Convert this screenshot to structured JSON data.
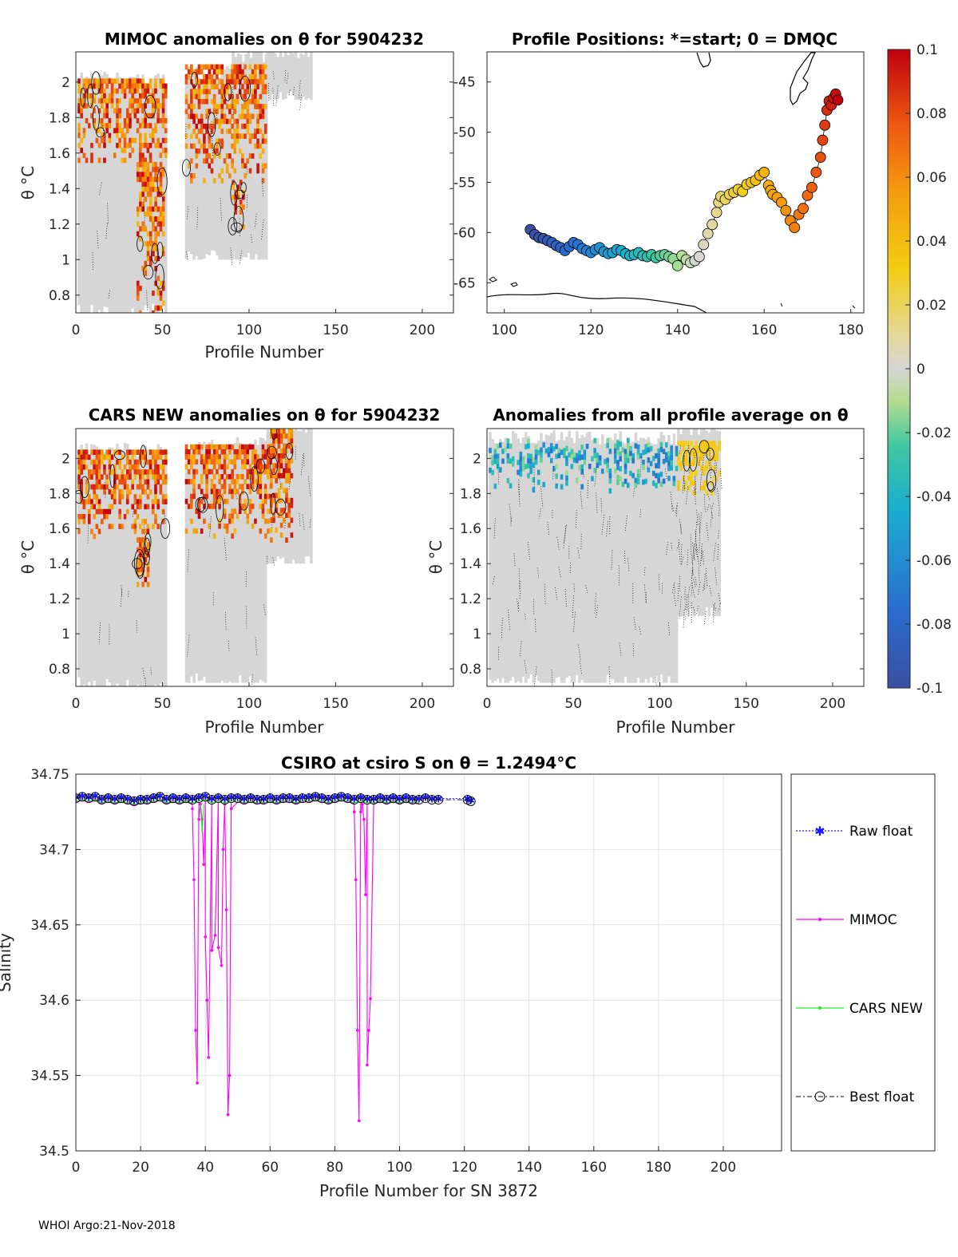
{
  "footer": "WHOI Argo:21-Nov-2018",
  "colorbar": {
    "ticks": [
      "0.1",
      "0.08",
      "0.06",
      "0.04",
      "0.02",
      "0",
      "-0.02",
      "-0.04",
      "-0.06",
      "-0.08",
      "-0.1"
    ],
    "range": [
      -0.1,
      0.1
    ]
  },
  "chart_data": [
    {
      "id": "mimoc",
      "type": "heatmap",
      "title": "MIMOC anomalies on θ  for 5904232",
      "xlabel": "Profile Number",
      "ylabel": "θ °C",
      "xlim": [
        0,
        218
      ],
      "ylim": [
        0.7,
        2.17
      ],
      "xticks": [
        "0",
        "50",
        "100",
        "150",
        "200"
      ],
      "yticks": [
        "0.8",
        "1",
        "1.2",
        "1.4",
        "1.6",
        "1.8",
        "2"
      ],
      "blocks": [
        {
          "x0": 1,
          "x1": 52,
          "ybot": 0.7,
          "ytop": 2.02
        },
        {
          "x0": 63,
          "x1": 90,
          "ybot": 1.0,
          "ytop": 2.05
        },
        {
          "x0": 90,
          "x1": 110,
          "ybot": 1.0,
          "ytop": 2.15
        },
        {
          "x0": 110,
          "x1": 136,
          "ybot": 1.9,
          "ytop": 2.17
        }
      ],
      "warm_bands": [
        {
          "x0": 1,
          "x1": 52,
          "ylo": 1.55,
          "yhi": 2.02
        },
        {
          "x0": 35,
          "x1": 50,
          "ylo": 0.7,
          "yhi": 1.55
        },
        {
          "x0": 63,
          "x1": 110,
          "ylo": 1.45,
          "yhi": 2.1
        },
        {
          "x0": 90,
          "x1": 97,
          "ylo": 1.15,
          "yhi": 1.45
        }
      ]
    },
    {
      "id": "positions",
      "type": "scatter",
      "title": "Profile Positions: *=start; 0 = DMQC",
      "xlim": [
        96,
        183
      ],
      "ylim": [
        -68,
        -42
      ],
      "xticks": [
        "100",
        "120",
        "140",
        "160",
        "180"
      ],
      "yticks": [
        "-45",
        "-50",
        "-55",
        "-60",
        "-65"
      ],
      "start": [
        110,
        -59.3
      ],
      "lon": [
        106,
        107,
        108,
        109,
        110,
        111,
        112,
        113,
        114,
        115,
        116,
        117,
        118,
        119,
        120,
        121,
        122,
        123,
        124,
        125,
        126,
        127,
        128,
        129,
        130,
        131,
        132,
        133,
        134,
        135,
        136,
        137,
        138,
        139,
        140,
        141,
        142,
        143,
        144,
        145,
        146,
        147,
        148,
        149,
        149.5,
        150,
        151,
        152,
        153,
        154,
        155,
        156,
        157,
        158,
        159,
        160,
        161,
        161.5,
        162,
        163,
        164,
        165,
        166,
        167,
        168,
        169,
        170,
        171,
        172,
        173,
        173.5,
        174,
        174.5,
        175,
        175.5,
        176,
        176.5,
        177
      ],
      "lat": [
        -59.7,
        -60.2,
        -60.5,
        -60.6,
        -60.8,
        -61,
        -61.3,
        -61.5,
        -61.8,
        -61.4,
        -61,
        -61.2,
        -61.6,
        -61.8,
        -62,
        -61.7,
        -61.5,
        -61.9,
        -62.1,
        -62,
        -61.7,
        -61.8,
        -62.1,
        -62.3,
        -62.2,
        -62,
        -62.3,
        -62.4,
        -62.2,
        -62.5,
        -62.3,
        -62.2,
        -62.4,
        -62.6,
        -63.3,
        -62.3,
        -62.7,
        -63,
        -62.8,
        -62.4,
        -61.2,
        -60.1,
        -59.2,
        -58,
        -57,
        -56.4,
        -56.7,
        -56.2,
        -56,
        -55.7,
        -55.9,
        -55.2,
        -55,
        -54.8,
        -54.3,
        -54,
        -55.3,
        -55.8,
        -56.2,
        -56.5,
        -57,
        -57.8,
        -58.8,
        -59.5,
        -58.2,
        -57.6,
        -56.3,
        -55.5,
        -54,
        -52.5,
        -50.8,
        -49.3,
        -47.8,
        -46.9,
        -47.3,
        -46.6,
        -46.2,
        -46.8
      ]
    },
    {
      "id": "cars",
      "type": "heatmap",
      "title": "CARS NEW anomalies on θ for 5904232",
      "xlabel": "Profile Number",
      "ylabel": "θ °C",
      "xlim": [
        0,
        218
      ],
      "ylim": [
        0.7,
        2.17
      ],
      "xticks": [
        "0",
        "50",
        "100",
        "150",
        "200"
      ],
      "yticks": [
        "0.8",
        "1",
        "1.2",
        "1.4",
        "1.6",
        "1.8",
        "2"
      ],
      "blocks": [
        {
          "x0": 1,
          "x1": 52,
          "ybot": 0.7,
          "ytop": 2.05
        },
        {
          "x0": 63,
          "x1": 110,
          "ybot": 0.72,
          "ytop": 2.08
        },
        {
          "x0": 110,
          "x1": 136,
          "ybot": 1.4,
          "ytop": 2.17
        }
      ],
      "warm_bands": [
        {
          "x0": 1,
          "x1": 52,
          "ylo": 1.55,
          "yhi": 2.05
        },
        {
          "x0": 35,
          "x1": 42,
          "ylo": 1.25,
          "yhi": 1.55
        },
        {
          "x0": 63,
          "x1": 112,
          "ylo": 1.55,
          "yhi": 2.08
        },
        {
          "x0": 112,
          "x1": 124,
          "ylo": 1.5,
          "yhi": 2.17
        }
      ]
    },
    {
      "id": "allprofile",
      "type": "heatmap",
      "title": "Anomalies from all profile average on θ",
      "xlabel": "Profile Number",
      "ylabel": "θ °C",
      "xlim": [
        0,
        218
      ],
      "ylim": [
        0.7,
        2.17
      ],
      "xticks": [
        "0",
        "50",
        "100",
        "150",
        "200"
      ],
      "yticks": [
        "0.8",
        "1",
        "1.2",
        "1.4",
        "1.6",
        "1.8",
        "2"
      ],
      "blocks": [
        {
          "x0": 1,
          "x1": 110,
          "ybot": 0.72,
          "ytop": 2.12
        },
        {
          "x0": 110,
          "x1": 135,
          "ybot": 1.1,
          "ytop": 2.17
        }
      ],
      "warm_bands": [
        {
          "x0": 110,
          "x1": 135,
          "ylo": 1.8,
          "yhi": 2.1
        }
      ],
      "cool_bands": [
        {
          "x0": 1,
          "x1": 110,
          "ylo": 1.8,
          "yhi": 2.12
        }
      ]
    },
    {
      "id": "csiro",
      "type": "line",
      "title": "CSIRO at csiro S on θ = 1.2494°C",
      "xlabel": "Profile Number for SN 3872",
      "ylabel": "Salinity",
      "xlim": [
        0,
        218
      ],
      "ylim": [
        34.5,
        34.75
      ],
      "xticks": [
        "0",
        "20",
        "40",
        "60",
        "80",
        "100",
        "120",
        "140",
        "160",
        "180",
        "200"
      ],
      "yticks": [
        "34.75",
        "34.7",
        "34.65",
        "34.6",
        "34.55",
        "34.5"
      ],
      "legend": [
        "Raw float",
        "MIMOC",
        "CARS NEW",
        "Best float"
      ],
      "series": [
        {
          "name": "Raw float",
          "color": "#1a1aff"
        },
        {
          "name": "MIMOC",
          "color": "#ff00ff",
          "x": [
            36,
            36.5,
            37,
            37.5,
            38,
            38.5,
            39,
            39.5,
            40,
            40.5,
            41,
            42,
            43,
            44,
            45,
            45.5,
            46,
            46.5,
            47,
            47.5,
            48,
            86,
            86.5,
            87,
            87.5,
            88,
            88.5,
            89,
            89.5,
            90,
            90.5,
            91
          ],
          "y": [
            34.727,
            34.68,
            34.58,
            34.545,
            34.72,
            34.73,
            34.72,
            34.69,
            34.642,
            34.6,
            34.562,
            34.633,
            34.643,
            34.635,
            34.623,
            34.7,
            34.73,
            34.66,
            34.524,
            34.55,
            34.727,
            34.725,
            34.68,
            34.58,
            34.52,
            34.725,
            34.73,
            34.72,
            34.67,
            34.557,
            34.58,
            34.601
          ]
        },
        {
          "name": "CARS NEW",
          "color": "#22ee22"
        },
        {
          "name": "Best float",
          "color": "#000000"
        }
      ],
      "float_x": [
        0,
        2,
        4,
        6,
        8,
        10,
        12,
        14,
        16,
        18,
        20,
        22,
        24,
        26,
        28,
        30,
        32,
        34,
        36,
        38,
        40,
        42,
        44,
        46,
        48,
        50,
        52,
        54,
        56,
        58,
        60,
        62,
        64,
        66,
        68,
        70,
        72,
        74,
        76,
        78,
        80,
        82,
        84,
        86,
        88,
        90,
        92,
        94,
        96,
        98,
        100,
        102,
        104,
        106,
        108,
        110,
        112,
        121,
        122
      ],
      "float_y": [
        34.734,
        34.735,
        34.734,
        34.735,
        34.733,
        34.734,
        34.733,
        34.734,
        34.733,
        34.732,
        34.733,
        34.733,
        34.734,
        34.735,
        34.733,
        34.734,
        34.733,
        34.734,
        34.733,
        34.734,
        34.735,
        34.733,
        34.734,
        34.733,
        34.734,
        34.734,
        34.733,
        34.734,
        34.733,
        34.733,
        34.734,
        34.733,
        34.734,
        34.734,
        34.733,
        34.734,
        34.734,
        34.735,
        34.734,
        34.733,
        34.734,
        34.735,
        34.734,
        34.733,
        34.734,
        34.733,
        34.733,
        34.734,
        34.733,
        34.734,
        34.733,
        34.734,
        34.733,
        34.733,
        34.734,
        34.733,
        34.733,
        34.733,
        34.732
      ],
      "cars_y_offset": -0.002
    }
  ]
}
